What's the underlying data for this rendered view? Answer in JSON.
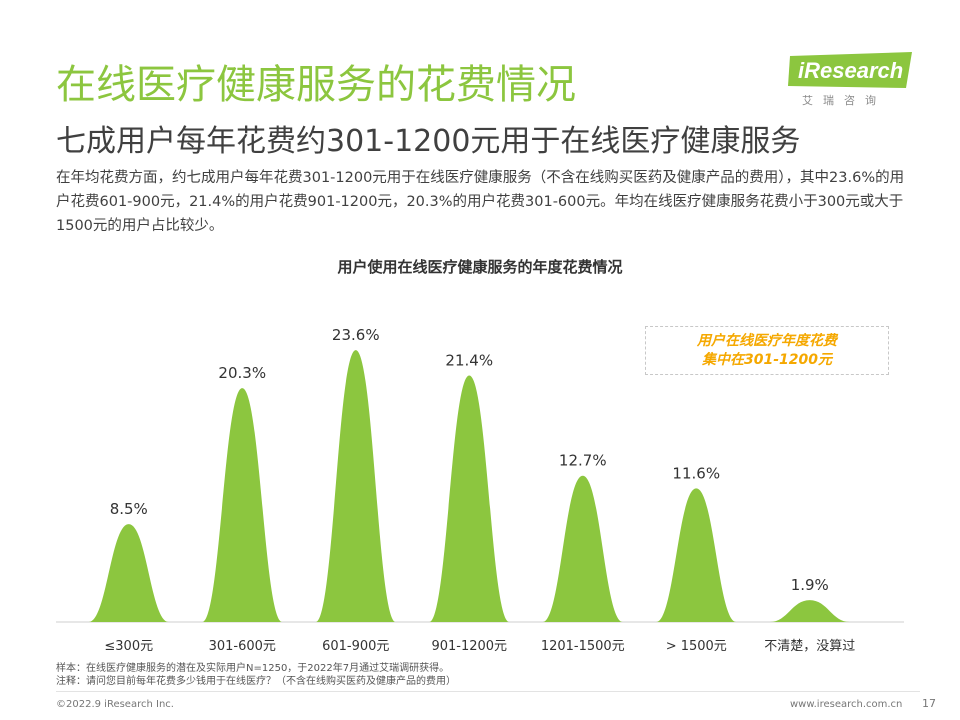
{
  "header": {
    "title": "在线医疗健康服务的花费情况",
    "subtitle": "七成用户每年花费约301-1200元用于在线医疗健康服务",
    "description": "在年均花费方面，约七成用户每年花费301-1200元用于在线医疗健康服务（不含在线购买医药及健康产品的费用），其中23.6%的用户花费601-900元，21.4%的用户花费901-1200元，20.3%的用户花费301-600元。年均在线医疗健康服务花费小于300元或大于1500元的用户占比较少。"
  },
  "logo": {
    "text": "iResearch",
    "chinese": "艾瑞咨询",
    "color": "#8cc63f"
  },
  "callout": {
    "line1": "用户在线医疗年度花费",
    "line2": "集中在301-1200元"
  },
  "chart_data": {
    "type": "bar",
    "title": "用户使用在线医疗健康服务的年度花费情况",
    "categories": [
      "≤300元",
      "301-600元",
      "601-900元",
      "901-1200元",
      "1201-1500元",
      "> 1500元",
      "不清楚，没算过"
    ],
    "values": [
      8.5,
      20.3,
      23.6,
      21.4,
      12.7,
      11.6,
      1.9
    ],
    "value_labels": [
      "8.5%",
      "20.3%",
      "23.6%",
      "21.4%",
      "12.7%",
      "11.6%",
      "1.9%"
    ],
    "unit": "%",
    "bar_shape": "bell-curve",
    "color": "#8cc63f",
    "ylim": [
      0,
      25
    ],
    "grid": false,
    "legend": "none"
  },
  "footer": {
    "note1": "样本：在线医疗健康服务的潜在及实际用户N=1250，于2022年7月通过艾瑞调研获得。",
    "note2": "注释：请问您目前每年花费多少钱用于在线医疗？（不含在线购买医药及健康产品的费用）",
    "copyright": "©2022.9 iResearch Inc.",
    "website": "www.iresearch.com.cn",
    "page": "17"
  }
}
